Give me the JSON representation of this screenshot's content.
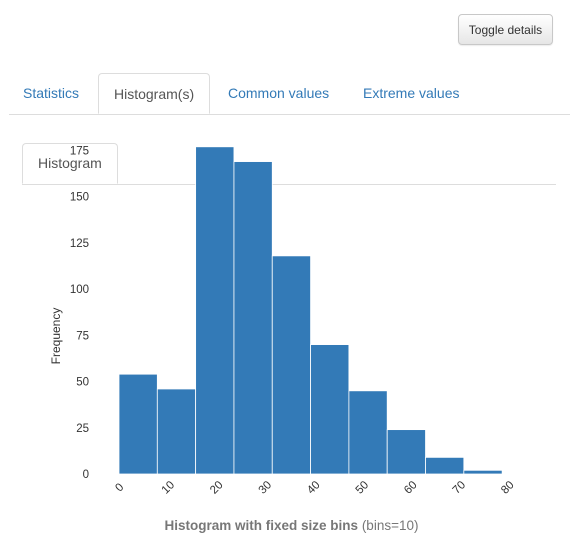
{
  "toolbar": {
    "toggle_label": "Toggle details"
  },
  "tabs": [
    {
      "label": "Statistics",
      "active": false
    },
    {
      "label": "Histogram(s)",
      "active": true
    },
    {
      "label": "Common values",
      "active": false
    },
    {
      "label": "Extreme values",
      "active": false
    }
  ],
  "subtabs": [
    {
      "label": "Histogram",
      "active": true
    }
  ],
  "caption": {
    "title": "Histogram with fixed size bins",
    "params": "(bins=10)"
  },
  "chart_data": {
    "type": "bar",
    "title": "",
    "xlabel": "",
    "ylabel": "Frequency",
    "bin_edges": [
      0,
      7.9,
      15.8,
      23.7,
      31.6,
      39.5,
      47.4,
      55.3,
      63.2,
      71.1,
      79
    ],
    "values": [
      54,
      46,
      177,
      169,
      118,
      70,
      45,
      24,
      9,
      2
    ],
    "xlim": [
      0,
      80
    ],
    "ylim": [
      0,
      185
    ],
    "xticks": [
      0,
      10,
      20,
      30,
      40,
      50,
      60,
      70,
      80
    ],
    "yticks": [
      0,
      25,
      50,
      75,
      100,
      125,
      150,
      175
    ],
    "bar_color": "#337ab7",
    "grid": false
  }
}
